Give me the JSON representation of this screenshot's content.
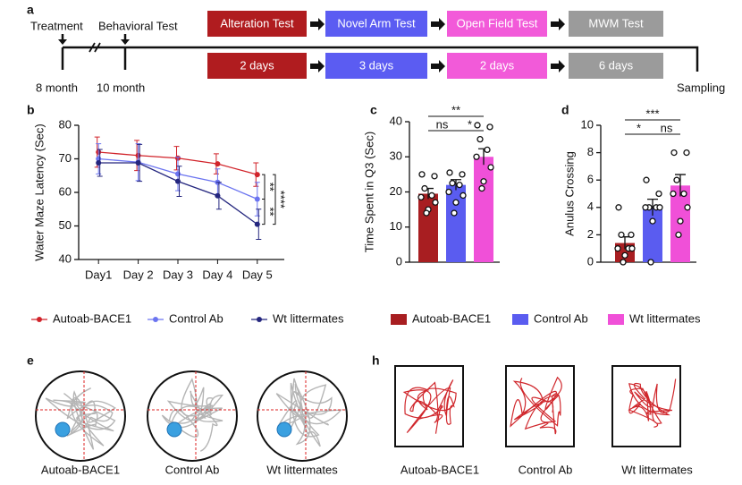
{
  "timeline": {
    "label": "a",
    "events": [
      "Treatment",
      "Behavioral Test"
    ],
    "ages": [
      "8 month",
      "10 month"
    ],
    "end": "Sampling",
    "stages": [
      {
        "name": "Alteration Test",
        "duration": "2 days",
        "color": "#b01c1f"
      },
      {
        "name": "Novel Arm Test",
        "duration": "3 days",
        "color": "#5b5cf2"
      },
      {
        "name": "Open Field Test",
        "duration": "2 days",
        "color": "#f25ad9"
      },
      {
        "name": "MWM Test",
        "duration": "6 days",
        "color": "#9b9b9b"
      }
    ]
  },
  "chart_data": [
    {
      "type": "line",
      "panel": "b",
      "y_label": "Water Maze Latency (Sec)",
      "categories": [
        "Day1",
        "Day 2",
        "Day 3",
        "Day 4",
        "Day 5"
      ],
      "ylim": [
        40,
        80
      ],
      "yticks": [
        40,
        50,
        60,
        70,
        80
      ],
      "series": [
        {
          "name": "Autoab-BACE1",
          "color": "#d1232a",
          "values": [
            72,
            71,
            70.2,
            68.5,
            65.3
          ],
          "errors": [
            4.5,
            4.5,
            3.5,
            3,
            3.5
          ]
        },
        {
          "name": "Control Ab",
          "color": "#6b74f0",
          "values": [
            70,
            69,
            65.5,
            63,
            58
          ],
          "errors": [
            4.5,
            5.5,
            5,
            4,
            5
          ]
        },
        {
          "name": "Wt littermates",
          "color": "#24267e",
          "values": [
            68.8,
            68.8,
            63.3,
            59,
            50.5
          ],
          "errors": [
            4,
            5.5,
            4.5,
            4,
            4.5
          ]
        }
      ],
      "annotations": [
        "**",
        "**",
        "****"
      ]
    },
    {
      "type": "bar",
      "panel": "c",
      "y_label": "Time Spent in Q3 (Sec)",
      "categories": [
        "Autoab-BACE1",
        "Control Ab",
        "Wt littermates"
      ],
      "colors": [
        "#a81e21",
        "#5a5cf0",
        "#f050d8"
      ],
      "values": [
        19.5,
        22,
        30
      ],
      "errors": [
        1.5,
        1.5,
        2.3
      ],
      "points": [
        [
          25,
          24.5,
          21,
          19,
          18.5,
          17,
          15,
          14
        ],
        [
          25.5,
          25,
          22.5,
          22,
          20,
          19,
          17,
          14
        ],
        [
          39,
          38.5,
          35,
          32,
          30,
          27,
          23,
          21
        ]
      ],
      "ylim": [
        0,
        40
      ],
      "yticks": [
        0,
        10,
        20,
        30,
        40
      ],
      "annotations": [
        "ns",
        "*",
        "**"
      ]
    },
    {
      "type": "bar",
      "panel": "d",
      "y_label": "Anulus Crossing",
      "categories": [
        null,
        null,
        null
      ],
      "colors": [
        "#a81e21",
        "#5a5cf0",
        "#f050d8"
      ],
      "values": [
        1.4,
        4,
        5.6
      ],
      "errors": [
        0.45,
        0.6,
        0.8
      ],
      "points": [
        [
          4,
          2,
          2,
          1,
          1,
          1,
          0.5,
          0
        ],
        [
          6,
          5,
          4,
          4,
          4,
          4,
          3,
          0
        ],
        [
          8,
          8,
          6,
          5,
          5,
          4,
          3,
          2
        ]
      ],
      "ylim": [
        0,
        10
      ],
      "yticks": [
        0,
        2,
        4,
        6,
        8,
        10
      ],
      "annotations": [
        "*",
        "ns",
        "***"
      ]
    }
  ],
  "tracks_e": {
    "label": "e",
    "groups": [
      "Autoab-BACE1",
      "Control Ab",
      "Wt littermates"
    ]
  },
  "tracks_h": {
    "label": "h",
    "groups": [
      "Autoab-BACE1",
      "Control Ab",
      "Wt littermates"
    ]
  }
}
